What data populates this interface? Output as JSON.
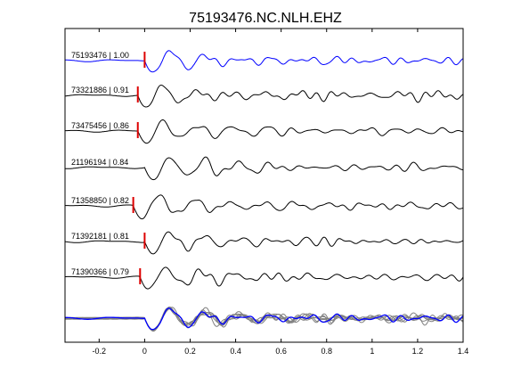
{
  "chart_data": {
    "type": "line",
    "title": "75193476.NC.NLH.EHZ",
    "xlabel": "",
    "ylabel": "",
    "xlim": [
      -0.35,
      1.4
    ],
    "xticks": [
      -0.2,
      0,
      0.2,
      0.4,
      0.6,
      0.8,
      1,
      1.2,
      1.4
    ],
    "xtick_labels": [
      "-0.2",
      "0",
      "0.2",
      "0.4",
      "0.6",
      "0.8",
      "1",
      "1.2",
      "1.4"
    ],
    "grid": false,
    "traces": [
      {
        "label": "75193476 | 1.00",
        "pick_time": 0.0,
        "color": "#0000ff"
      },
      {
        "label": "73321886 | 0.91",
        "pick_time": -0.03,
        "color": "#000000"
      },
      {
        "label": "73475456 | 0.86",
        "pick_time": -0.03,
        "color": "#000000"
      },
      {
        "label": "21196194 | 0.84",
        "pick_time": null,
        "color": "#000000"
      },
      {
        "label": "71358850 | 0.82",
        "pick_time": -0.05,
        "color": "#000000"
      },
      {
        "label": "71392181 | 0.81",
        "pick_time": 0.0,
        "color": "#000000"
      },
      {
        "label": "71390366 | 0.79",
        "pick_time": -0.02,
        "color": "#000000"
      }
    ],
    "stack": {
      "overlay_color": "#808080",
      "master_color": "#0000ff"
    },
    "pick_color": "#dd0000"
  }
}
